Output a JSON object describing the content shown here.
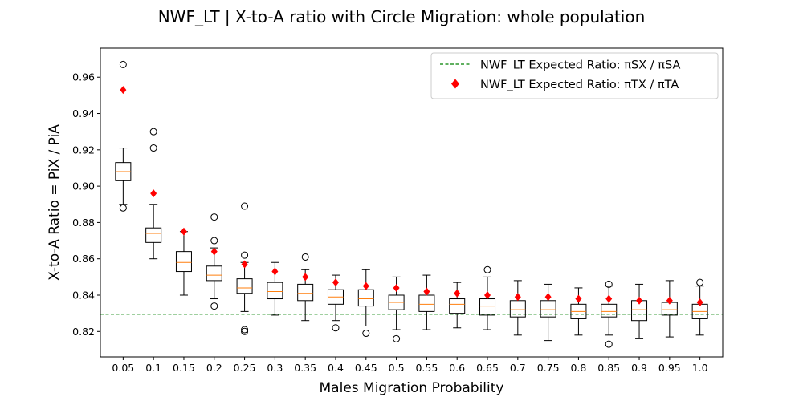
{
  "chart_data": {
    "type": "box",
    "title": "NWF_LT | X-to-A ratio with Circle Migration: whole population",
    "xlabel": "Males Migration Probability",
    "ylabel": "X-to-A Ratio = PiX / PiA",
    "ylim": [
      0.806,
      0.976
    ],
    "yticks": [
      0.82,
      0.84,
      0.86,
      0.88,
      0.9,
      0.92,
      0.94,
      0.96
    ],
    "ytick_labels": [
      "0.82",
      "0.84",
      "0.86",
      "0.88",
      "0.90",
      "0.92",
      "0.94",
      "0.96"
    ],
    "categories": [
      "0.05",
      "0.1",
      "0.15",
      "0.2",
      "0.25",
      "0.3",
      "0.35",
      "0.4",
      "0.45",
      "0.5",
      "0.55",
      "0.6",
      "0.65",
      "0.7",
      "0.75",
      "0.8",
      "0.85",
      "0.9",
      "0.95",
      "1.0"
    ],
    "boxes": [
      {
        "whislo": 0.89,
        "q1": 0.903,
        "med": 0.908,
        "q3": 0.913,
        "whishi": 0.921,
        "fliers": [
          0.888,
          0.967
        ]
      },
      {
        "whislo": 0.86,
        "q1": 0.869,
        "med": 0.874,
        "q3": 0.877,
        "whishi": 0.89,
        "fliers": [
          0.921,
          0.93
        ]
      },
      {
        "whislo": 0.84,
        "q1": 0.853,
        "med": 0.858,
        "q3": 0.864,
        "whishi": 0.875,
        "fliers": []
      },
      {
        "whislo": 0.838,
        "q1": 0.848,
        "med": 0.851,
        "q3": 0.856,
        "whishi": 0.866,
        "fliers": [
          0.834,
          0.87,
          0.883
        ]
      },
      {
        "whislo": 0.831,
        "q1": 0.841,
        "med": 0.844,
        "q3": 0.849,
        "whishi": 0.858,
        "fliers": [
          0.82,
          0.821,
          0.862,
          0.889
        ]
      },
      {
        "whislo": 0.829,
        "q1": 0.838,
        "med": 0.842,
        "q3": 0.847,
        "whishi": 0.858,
        "fliers": []
      },
      {
        "whislo": 0.826,
        "q1": 0.837,
        "med": 0.841,
        "q3": 0.846,
        "whishi": 0.854,
        "fliers": [
          0.861
        ]
      },
      {
        "whislo": 0.826,
        "q1": 0.835,
        "med": 0.839,
        "q3": 0.843,
        "whishi": 0.851,
        "fliers": [
          0.822
        ]
      },
      {
        "whislo": 0.823,
        "q1": 0.834,
        "med": 0.838,
        "q3": 0.843,
        "whishi": 0.854,
        "fliers": [
          0.819
        ]
      },
      {
        "whislo": 0.821,
        "q1": 0.832,
        "med": 0.836,
        "q3": 0.84,
        "whishi": 0.85,
        "fliers": [
          0.816
        ]
      },
      {
        "whislo": 0.821,
        "q1": 0.831,
        "med": 0.835,
        "q3": 0.84,
        "whishi": 0.851,
        "fliers": []
      },
      {
        "whislo": 0.822,
        "q1": 0.83,
        "med": 0.835,
        "q3": 0.838,
        "whishi": 0.847,
        "fliers": []
      },
      {
        "whislo": 0.821,
        "q1": 0.829,
        "med": 0.834,
        "q3": 0.838,
        "whishi": 0.85,
        "fliers": [
          0.854
        ]
      },
      {
        "whislo": 0.818,
        "q1": 0.828,
        "med": 0.832,
        "q3": 0.837,
        "whishi": 0.848,
        "fliers": []
      },
      {
        "whislo": 0.815,
        "q1": 0.828,
        "med": 0.832,
        "q3": 0.837,
        "whishi": 0.846,
        "fliers": []
      },
      {
        "whislo": 0.818,
        "q1": 0.827,
        "med": 0.831,
        "q3": 0.835,
        "whishi": 0.844,
        "fliers": []
      },
      {
        "whislo": 0.818,
        "q1": 0.828,
        "med": 0.831,
        "q3": 0.835,
        "whishi": 0.845,
        "fliers": [
          0.813,
          0.846
        ]
      },
      {
        "whislo": 0.816,
        "q1": 0.826,
        "med": 0.832,
        "q3": 0.837,
        "whishi": 0.846,
        "fliers": []
      },
      {
        "whislo": 0.817,
        "q1": 0.829,
        "med": 0.832,
        "q3": 0.836,
        "whishi": 0.848,
        "fliers": []
      },
      {
        "whislo": 0.818,
        "q1": 0.827,
        "med": 0.831,
        "q3": 0.835,
        "whishi": 0.845,
        "fliers": [
          0.847
        ]
      }
    ],
    "expected_tx_ta": [
      0.953,
      0.896,
      0.875,
      0.864,
      0.857,
      0.853,
      0.85,
      0.847,
      0.845,
      0.844,
      0.842,
      0.841,
      0.84,
      0.839,
      0.839,
      0.838,
      0.838,
      0.837,
      0.837,
      0.836
    ],
    "expected_sx_sa": 0.8295,
    "legend": {
      "position": "upper right",
      "entries": [
        "NWF_LT Expected Ratio: πSX / πSA",
        "NWF_LT Expected Ratio: πTX / πTA"
      ]
    },
    "colors": {
      "box": "#000000",
      "median": "#ff7f0e",
      "expected_tx": "#ff0000",
      "expected_sx": "#008000"
    },
    "grid": false
  }
}
